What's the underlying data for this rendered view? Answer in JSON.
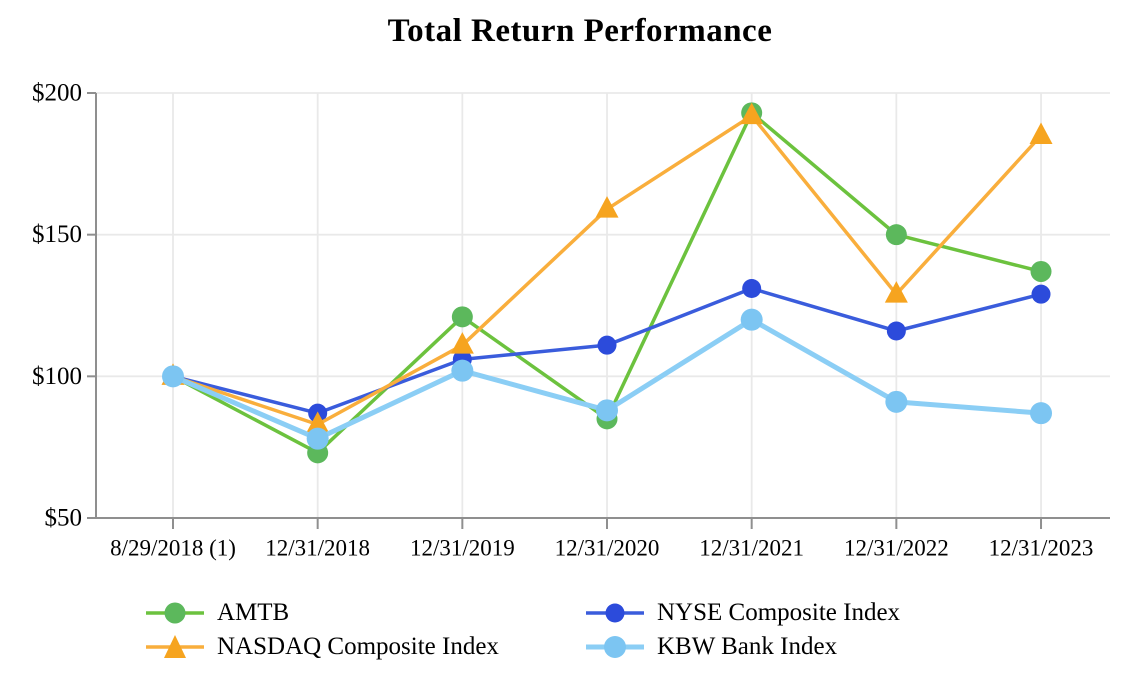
{
  "chart_data": {
    "type": "line",
    "title": "Total Return Performance",
    "x_categories": [
      "8/29/2018 (1)",
      "12/31/2018",
      "12/31/2019",
      "12/31/2020",
      "12/31/2021",
      "12/31/2022",
      "12/31/2023"
    ],
    "y_ticks": [
      50,
      100,
      150,
      200
    ],
    "y_tick_labels": [
      "$50",
      "$100",
      "$150",
      "$200"
    ],
    "ylim": [
      50,
      200
    ],
    "grid": true,
    "legend_position": "bottom",
    "series": [
      {
        "name": "AMTB",
        "marker": "circle",
        "color": "#5CB85C",
        "line_color": "#6CC23E",
        "line_width": 3.5,
        "marker_size": 10.5,
        "values": [
          100,
          73,
          121,
          85,
          193,
          150,
          137
        ]
      },
      {
        "name": "NASDAQ Composite Index",
        "marker": "triangle",
        "color": "#F6A41F",
        "line_color": "#F9AE3C",
        "line_width": 3.5,
        "marker_size": 12,
        "values": [
          100,
          83,
          111,
          159,
          192,
          129,
          185
        ]
      },
      {
        "name": "NYSE Composite Index",
        "marker": "circle",
        "color": "#2C4BDB",
        "line_color": "#3A5CDC",
        "line_width": 3.5,
        "marker_size": 9.5,
        "values": [
          100,
          87,
          106,
          111,
          131,
          116,
          129
        ]
      },
      {
        "name": "KBW Bank Index",
        "marker": "circle",
        "color": "#7CC5F2",
        "line_color": "#8BCEF5",
        "line_width": 5,
        "marker_size": 11,
        "values": [
          100,
          78,
          102,
          88,
          120,
          91,
          87
        ]
      }
    ],
    "draw_order": [
      0,
      2,
      1,
      3
    ],
    "axis_color": "#8F8F8F",
    "grid_color": "#E9E9E9",
    "text_color": "#000000"
  }
}
